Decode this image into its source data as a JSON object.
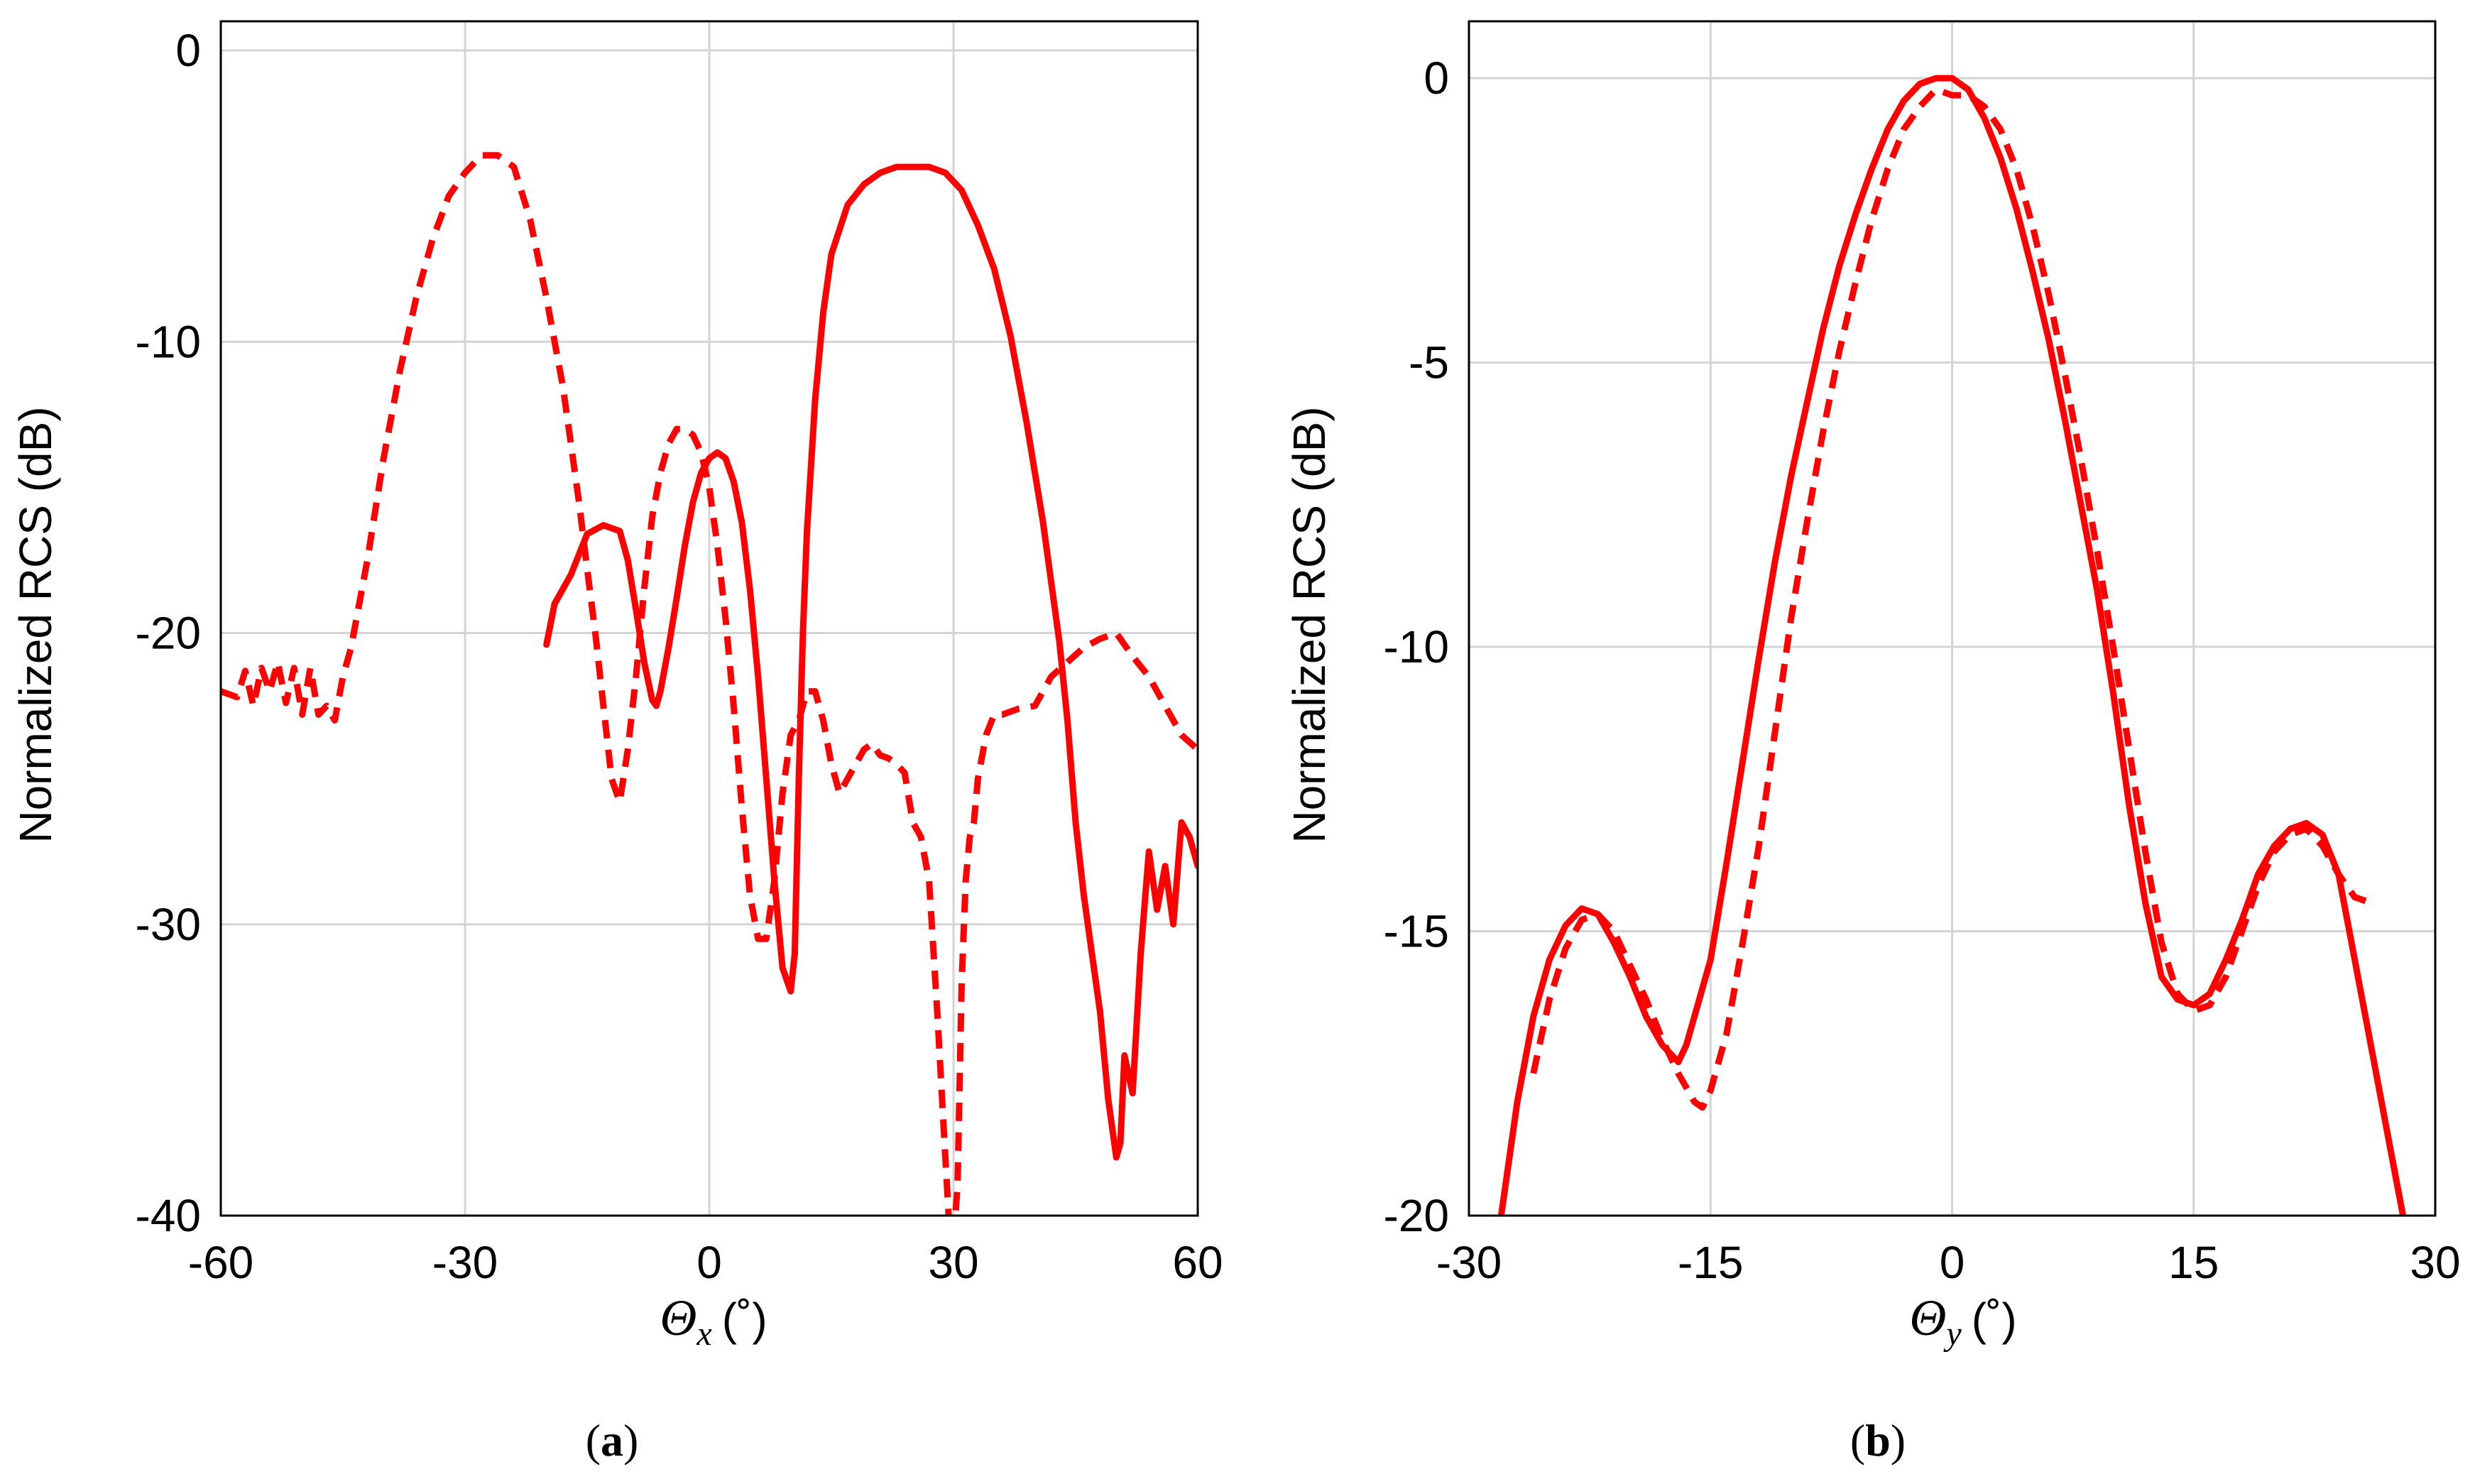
{
  "colors": {
    "series": "#ff0000",
    "grid": "#d4d4d4",
    "frame": "#000000"
  },
  "chart_data": [
    {
      "type": "line",
      "panel": "a",
      "caption": "a",
      "xlabel_symbol": "Θ",
      "xlabel_sub": "x",
      "xlabel_unit": "(˚)",
      "ylabel": "Normalized RCS (dB)",
      "xlim": [
        -60,
        60
      ],
      "ylim": [
        -40,
        1
      ],
      "xticks": [
        -60,
        -30,
        0,
        30,
        60
      ],
      "yticks": [
        0,
        -10,
        -20,
        -30,
        -40
      ],
      "grid": true,
      "series": [
        {
          "name": "solid",
          "style": "solid",
          "x": [
            -20,
            -19,
            -17,
            -15,
            -13,
            -11,
            -10,
            -9,
            -8,
            -7,
            -6.5,
            -6,
            -5,
            -4,
            -3,
            -2,
            -1,
            0,
            1,
            2,
            3,
            4,
            5,
            6,
            7,
            8,
            9,
            10,
            10.5,
            11,
            11.5,
            12,
            13,
            14,
            15,
            17,
            19,
            21,
            23,
            25,
            27,
            29,
            31,
            33,
            35,
            37,
            39,
            41,
            43,
            44,
            45,
            46,
            47,
            48,
            49,
            50,
            50.5,
            51,
            52,
            53,
            54,
            55,
            56,
            57,
            58,
            59,
            60
          ],
          "values": [
            -20.4,
            -19.0,
            -18.0,
            -16.6,
            -16.3,
            -16.5,
            -17.5,
            -19.2,
            -21.0,
            -22.3,
            -22.5,
            -22.0,
            -20.5,
            -18.8,
            -17.0,
            -15.5,
            -14.5,
            -14.0,
            -13.8,
            -14.0,
            -14.8,
            -16.2,
            -18.5,
            -21.5,
            -25.0,
            -28.5,
            -31.5,
            -32.3,
            -31.0,
            -25.0,
            -20.0,
            -16.5,
            -12.0,
            -9.0,
            -7.0,
            -5.3,
            -4.6,
            -4.2,
            -4.0,
            -4.0,
            -4.0,
            -4.2,
            -4.8,
            -6.0,
            -7.5,
            -9.8,
            -12.8,
            -16.2,
            -20.3,
            -23.0,
            -26.5,
            -29.0,
            -31.0,
            -33.0,
            -36.0,
            -38.0,
            -37.5,
            -34.5,
            -35.8,
            -31.0,
            -27.5,
            -29.5,
            -28.0,
            -30.0,
            -26.5,
            -27.0,
            -28.0
          ]
        },
        {
          "name": "dashed",
          "style": "dashed",
          "x": [
            -60,
            -58,
            -57,
            -56,
            -55,
            -54,
            -53,
            -52,
            -51,
            -50,
            -49,
            -48,
            -47,
            -46,
            -45,
            -44,
            -42,
            -40,
            -38,
            -36,
            -34,
            -32,
            -30,
            -28,
            -26,
            -24,
            -22,
            -20,
            -18,
            -17,
            -16,
            -15,
            -14,
            -13,
            -12,
            -11,
            -10,
            -9,
            -8,
            -7,
            -6,
            -5,
            -4,
            -3,
            -2,
            -1,
            0,
            1,
            2,
            3,
            4,
            5,
            6,
            7,
            8,
            9,
            10,
            11,
            12,
            13,
            14,
            15,
            16,
            17,
            18,
            19,
            20,
            21,
            22,
            23,
            24,
            25,
            26,
            27,
            28,
            29,
            29.5,
            30,
            30.5,
            31,
            31.5,
            32,
            32.5,
            33,
            34,
            35,
            36,
            38,
            40,
            42,
            44,
            46,
            48,
            50,
            52,
            54,
            56,
            58,
            60
          ],
          "values": [
            -22.0,
            -22.2,
            -21.3,
            -22.5,
            -21.2,
            -22.0,
            -21.0,
            -22.4,
            -21.2,
            -22.8,
            -21.2,
            -22.8,
            -22.5,
            -23.0,
            -21.5,
            -20.5,
            -17.5,
            -14.0,
            -11.0,
            -8.5,
            -6.5,
            -5.0,
            -4.2,
            -3.6,
            -3.6,
            -4.0,
            -5.8,
            -8.5,
            -11.5,
            -13.5,
            -15.5,
            -17.8,
            -20.0,
            -22.5,
            -25.0,
            -25.8,
            -24.0,
            -21.5,
            -18.5,
            -16.0,
            -14.5,
            -13.5,
            -13.0,
            -13.0,
            -13.2,
            -13.8,
            -15.0,
            -17.0,
            -19.5,
            -22.5,
            -26.0,
            -29.0,
            -30.5,
            -30.5,
            -28.5,
            -25.5,
            -23.5,
            -23.0,
            -22.0,
            -22.0,
            -23.0,
            -24.5,
            -25.5,
            -25.0,
            -24.5,
            -24.0,
            -23.8,
            -24.2,
            -24.3,
            -24.5,
            -24.8,
            -26.5,
            -27.0,
            -28.5,
            -33.0,
            -38.0,
            -40.5,
            -40.8,
            -39.0,
            -32.0,
            -28.5,
            -27.0,
            -26.5,
            -25.0,
            -23.5,
            -22.8,
            -22.8,
            -22.6,
            -22.5,
            -21.5,
            -21.0,
            -20.5,
            -20.2,
            -20.0,
            -20.8,
            -21.5,
            -22.5,
            -23.5,
            -24.0
          ]
        }
      ]
    },
    {
      "type": "line",
      "panel": "b",
      "caption": "b",
      "xlabel_symbol": "Θ",
      "xlabel_sub": "y",
      "xlabel_unit": "(˚)",
      "ylabel": "Normalized RCS (dB)",
      "xlim": [
        -30,
        30
      ],
      "ylim": [
        -20,
        1
      ],
      "xticks": [
        -30,
        -15,
        0,
        15,
        30
      ],
      "yticks": [
        0,
        -5,
        -10,
        -15,
        -20
      ],
      "grid": true,
      "series": [
        {
          "name": "solid",
          "style": "solid",
          "x": [
            -28,
            -27,
            -26,
            -25,
            -24,
            -23,
            -22,
            -21,
            -20,
            -19,
            -18,
            -17,
            -16.5,
            -16,
            -15,
            -14,
            -13,
            -12,
            -11,
            -10,
            -9,
            -8,
            -7,
            -6,
            -5,
            -4,
            -3,
            -2,
            -1,
            0,
            1,
            2,
            3,
            4,
            5,
            6,
            7,
            8,
            9,
            10,
            11,
            12,
            13,
            14,
            15,
            16,
            17,
            18,
            19,
            20,
            21,
            22,
            23,
            24,
            25,
            26,
            27,
            28
          ],
          "values": [
            -20.0,
            -18.0,
            -16.5,
            -15.5,
            -14.9,
            -14.6,
            -14.7,
            -15.2,
            -15.8,
            -16.5,
            -17.0,
            -17.3,
            -17.0,
            -16.5,
            -15.5,
            -13.8,
            -12.0,
            -10.2,
            -8.5,
            -7.0,
            -5.7,
            -4.4,
            -3.3,
            -2.4,
            -1.6,
            -0.9,
            -0.4,
            -0.1,
            0.0,
            0.0,
            -0.2,
            -0.7,
            -1.4,
            -2.3,
            -3.4,
            -4.6,
            -6.0,
            -7.5,
            -9.0,
            -10.8,
            -12.8,
            -14.5,
            -15.8,
            -16.2,
            -16.3,
            -16.1,
            -15.5,
            -14.8,
            -14.0,
            -13.5,
            -13.2,
            -13.1,
            -13.3,
            -14.0,
            -15.5,
            -17.0,
            -18.5,
            -20.0
          ]
        },
        {
          "name": "dashed",
          "style": "dashed",
          "x": [
            -26,
            -25,
            -24,
            -23,
            -22,
            -21,
            -20,
            -19,
            -18,
            -17,
            -16,
            -15.5,
            -15,
            -14,
            -13,
            -12,
            -11,
            -10,
            -9,
            -8,
            -7,
            -6,
            -5,
            -4,
            -3,
            -2,
            -1,
            0,
            1,
            2,
            3,
            4,
            5,
            6,
            7,
            8,
            9,
            10,
            11,
            12,
            13,
            14,
            15,
            16,
            17,
            18,
            19,
            20,
            21,
            22,
            23,
            24,
            25,
            26
          ],
          "values": [
            -17.5,
            -16.2,
            -15.3,
            -14.8,
            -14.7,
            -15.0,
            -15.6,
            -16.2,
            -16.9,
            -17.5,
            -18.0,
            -18.1,
            -17.8,
            -16.8,
            -15.2,
            -13.5,
            -11.5,
            -9.5,
            -7.8,
            -6.2,
            -4.8,
            -3.6,
            -2.5,
            -1.6,
            -0.9,
            -0.5,
            -0.2,
            -0.3,
            -0.3,
            -0.5,
            -0.9,
            -1.6,
            -2.6,
            -3.8,
            -5.2,
            -6.7,
            -8.3,
            -10.0,
            -11.8,
            -13.6,
            -15.2,
            -16.1,
            -16.4,
            -16.3,
            -15.8,
            -15.0,
            -14.2,
            -13.6,
            -13.3,
            -13.2,
            -13.5,
            -14.0,
            -14.4,
            -14.5
          ]
        }
      ]
    }
  ]
}
